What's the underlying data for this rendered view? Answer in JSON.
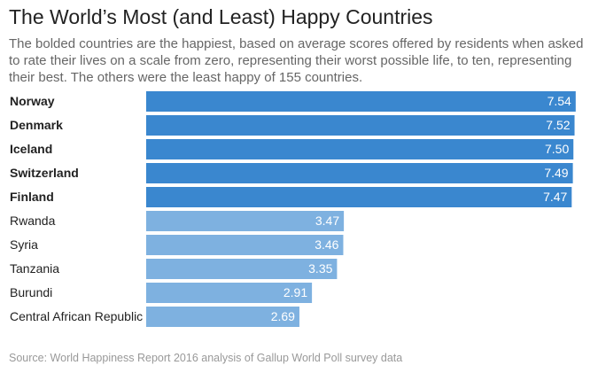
{
  "chart_data": {
    "type": "hbar",
    "title": "The World’s Most (and Least) Happy Countries",
    "subtitle": "The bolded countries are the happiest, based on average scores offered by residents when asked to rate their lives on a scale from zero, representing their worst possible life, to ten, representing their best. The others were the least happy of 155 countries.",
    "categories": [
      "Norway",
      "Denmark",
      "Iceland",
      "Switzerland",
      "Finland",
      "Rwanda",
      "Syria",
      "Tanzania",
      "Burundi",
      "Central African Republic"
    ],
    "values": [
      7.54,
      7.52,
      7.5,
      7.49,
      7.47,
      3.47,
      3.46,
      3.35,
      2.91,
      2.69
    ],
    "value_labels": [
      "7.54",
      "7.52",
      "7.50",
      "7.49",
      "7.47",
      "3.47",
      "3.46",
      "3.35",
      "2.91",
      "2.69"
    ],
    "colors": [
      "#3a87cf",
      "#3a87cf",
      "#3a87cf",
      "#3a87cf",
      "#3a87cf",
      "#7eb1e0",
      "#7eb1e0",
      "#7eb1e0",
      "#7eb1e0",
      "#7eb1e0"
    ],
    "bold": [
      true,
      true,
      true,
      true,
      true,
      false,
      false,
      false,
      false,
      false
    ],
    "source": "Source: World Happiness Report 2016 analysis of Gallup World Poll survey data"
  }
}
